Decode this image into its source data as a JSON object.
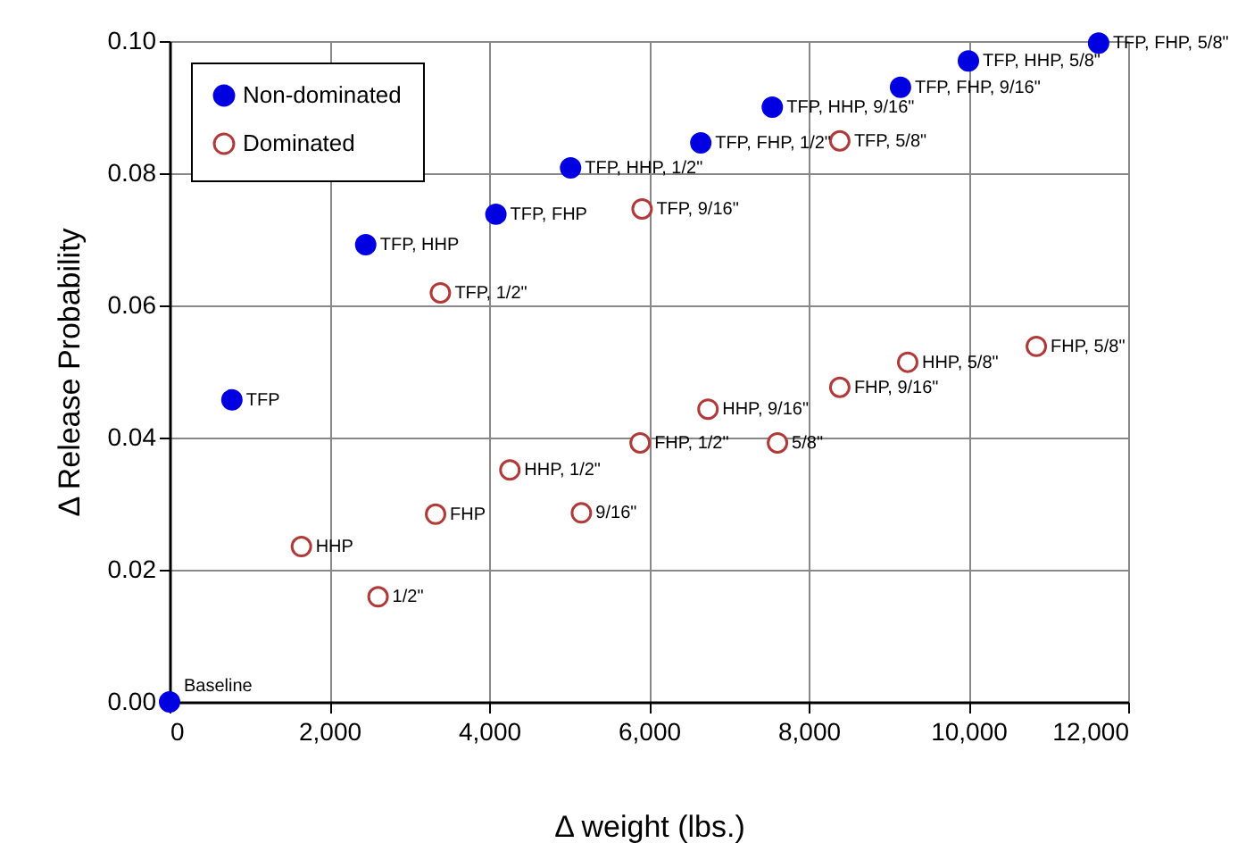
{
  "chart_data": {
    "type": "scatter",
    "xlabel": "Δ weight (lbs.)",
    "ylabel": "Δ Release Probability",
    "xlim": [
      0,
      12000
    ],
    "xticks": [
      {
        "value": 0,
        "label": "0"
      },
      {
        "value": 2000,
        "label": "2,000"
      },
      {
        "value": 4000,
        "label": "4,000"
      },
      {
        "value": 6000,
        "label": "6,000"
      },
      {
        "value": 8000,
        "label": "8,000"
      },
      {
        "value": 10000,
        "label": "10,000"
      },
      {
        "value": 12000,
        "label": "12,000"
      }
    ],
    "ylim": [
      0,
      0.1
    ],
    "yticks": [
      {
        "value": 0,
        "label": "0.00"
      },
      {
        "value": 0.02,
        "label": "0.02"
      },
      {
        "value": 0.04,
        "label": "0.04"
      },
      {
        "value": 0.06,
        "label": "0.06"
      },
      {
        "value": 0.08,
        "label": "0.08"
      },
      {
        "value": 0.1,
        "label": "0.10"
      }
    ],
    "grid": true,
    "legend": "top left",
    "marker": "circle",
    "series": [
      {
        "name": "Non-dominated",
        "color": "#0000e0",
        "x": [
          0,
          780,
          2455,
          4085,
          5020,
          6650,
          7545,
          9150,
          10000,
          11630
        ],
        "values": [
          0,
          0.0457,
          0.0692,
          0.0738,
          0.0808,
          0.0846,
          0.09,
          0.093,
          0.097,
          0.0997
        ]
      },
      {
        "name": "Dominated",
        "color": "#b03a3a",
        "x": [
          3390,
          5915,
          8390,
          1650,
          2610,
          3330,
          4260,
          5155,
          5890,
          6740,
          7610,
          8390,
          9240,
          10850
        ],
        "values": [
          0.0619,
          0.0746,
          0.0849,
          0.0235,
          0.0159,
          0.0284,
          0.0351,
          0.0286,
          0.0392,
          0.0443,
          0.0392,
          0.0476,
          0.0514,
          0.0538
        ]
      }
    ],
    "annotations": [
      {
        "text": "Baseline",
        "x": 0,
        "y": 0
      },
      {
        "text": "TFP",
        "x": 780,
        "y": 0.0457
      },
      {
        "text": "TFP, HHP",
        "x": 2455,
        "y": 0.0692
      },
      {
        "text": "TFP, FHP",
        "x": 4085,
        "y": 0.0738
      },
      {
        "text": "TFP, HHP, 1/2\"",
        "x": 5020,
        "y": 0.0808
      },
      {
        "text": "TFP, FHP, 1/2\"",
        "x": 6650,
        "y": 0.0846
      },
      {
        "text": "TFP, HHP, 9/16\"",
        "x": 7545,
        "y": 0.09
      },
      {
        "text": "TFP, FHP, 9/16\"",
        "x": 9150,
        "y": 0.093
      },
      {
        "text": "TFP, HHP, 5/8\"",
        "x": 10000,
        "y": 0.097
      },
      {
        "text": "TFP, FHP, 5/8\"",
        "x": 11630,
        "y": 0.0997
      },
      {
        "text": "TFP, 1/2\"",
        "x": 3390,
        "y": 0.0619
      },
      {
        "text": "TFP, 9/16\"",
        "x": 5915,
        "y": 0.0746
      },
      {
        "text": "TFP, 5/8\"",
        "x": 8390,
        "y": 0.0849
      },
      {
        "text": "HHP",
        "x": 1650,
        "y": 0.0235
      },
      {
        "text": "1/2\"",
        "x": 2610,
        "y": 0.0159
      },
      {
        "text": "FHP",
        "x": 3330,
        "y": 0.0284
      },
      {
        "text": "HHP, 1/2\"",
        "x": 4260,
        "y": 0.0351
      },
      {
        "text": "9/16\"",
        "x": 5155,
        "y": 0.0286
      },
      {
        "text": "FHP, 1/2\"",
        "x": 5890,
        "y": 0.0392
      },
      {
        "text": "HHP, 9/16\"",
        "x": 6740,
        "y": 0.0443
      },
      {
        "text": "5/8\"",
        "x": 7610,
        "y": 0.0392
      },
      {
        "text": "FHP, 9/16\"",
        "x": 8390,
        "y": 0.0476
      },
      {
        "text": "HHP, 5/8\"",
        "x": 9240,
        "y": 0.0514
      },
      {
        "text": "FHP, 5/8\"",
        "x": 10850,
        "y": 0.0538
      }
    ]
  }
}
